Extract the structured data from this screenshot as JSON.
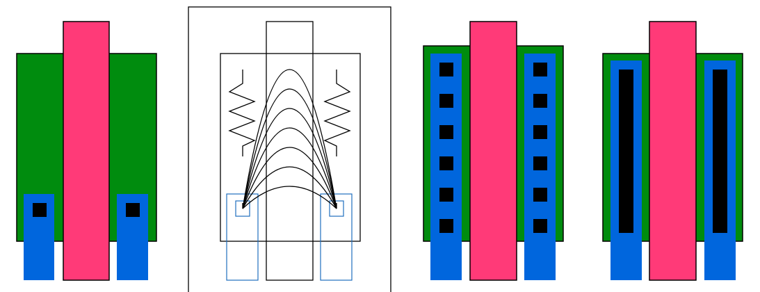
{
  "figure": {
    "panels": [
      {
        "id": "panel-1-single-contacts",
        "contacts_per_side": 1,
        "contact_style": "square"
      },
      {
        "id": "panel-2-resistance-schematic",
        "resistor_count": 2,
        "current_arc_count": 7,
        "contact_style": "outline"
      },
      {
        "id": "panel-3-many-contacts",
        "contacts_per_side": 6,
        "contact_style": "square"
      },
      {
        "id": "panel-4-strip-contacts",
        "contacts_per_side": 1,
        "contact_style": "strip"
      }
    ],
    "colors": {
      "active": "#008c0e",
      "gate": "#ff3a78",
      "metal": "#0066dd",
      "contact": "#000000",
      "outline_metal": "#1f6fbf",
      "line": "#000000",
      "background": "#ffffff"
    }
  }
}
